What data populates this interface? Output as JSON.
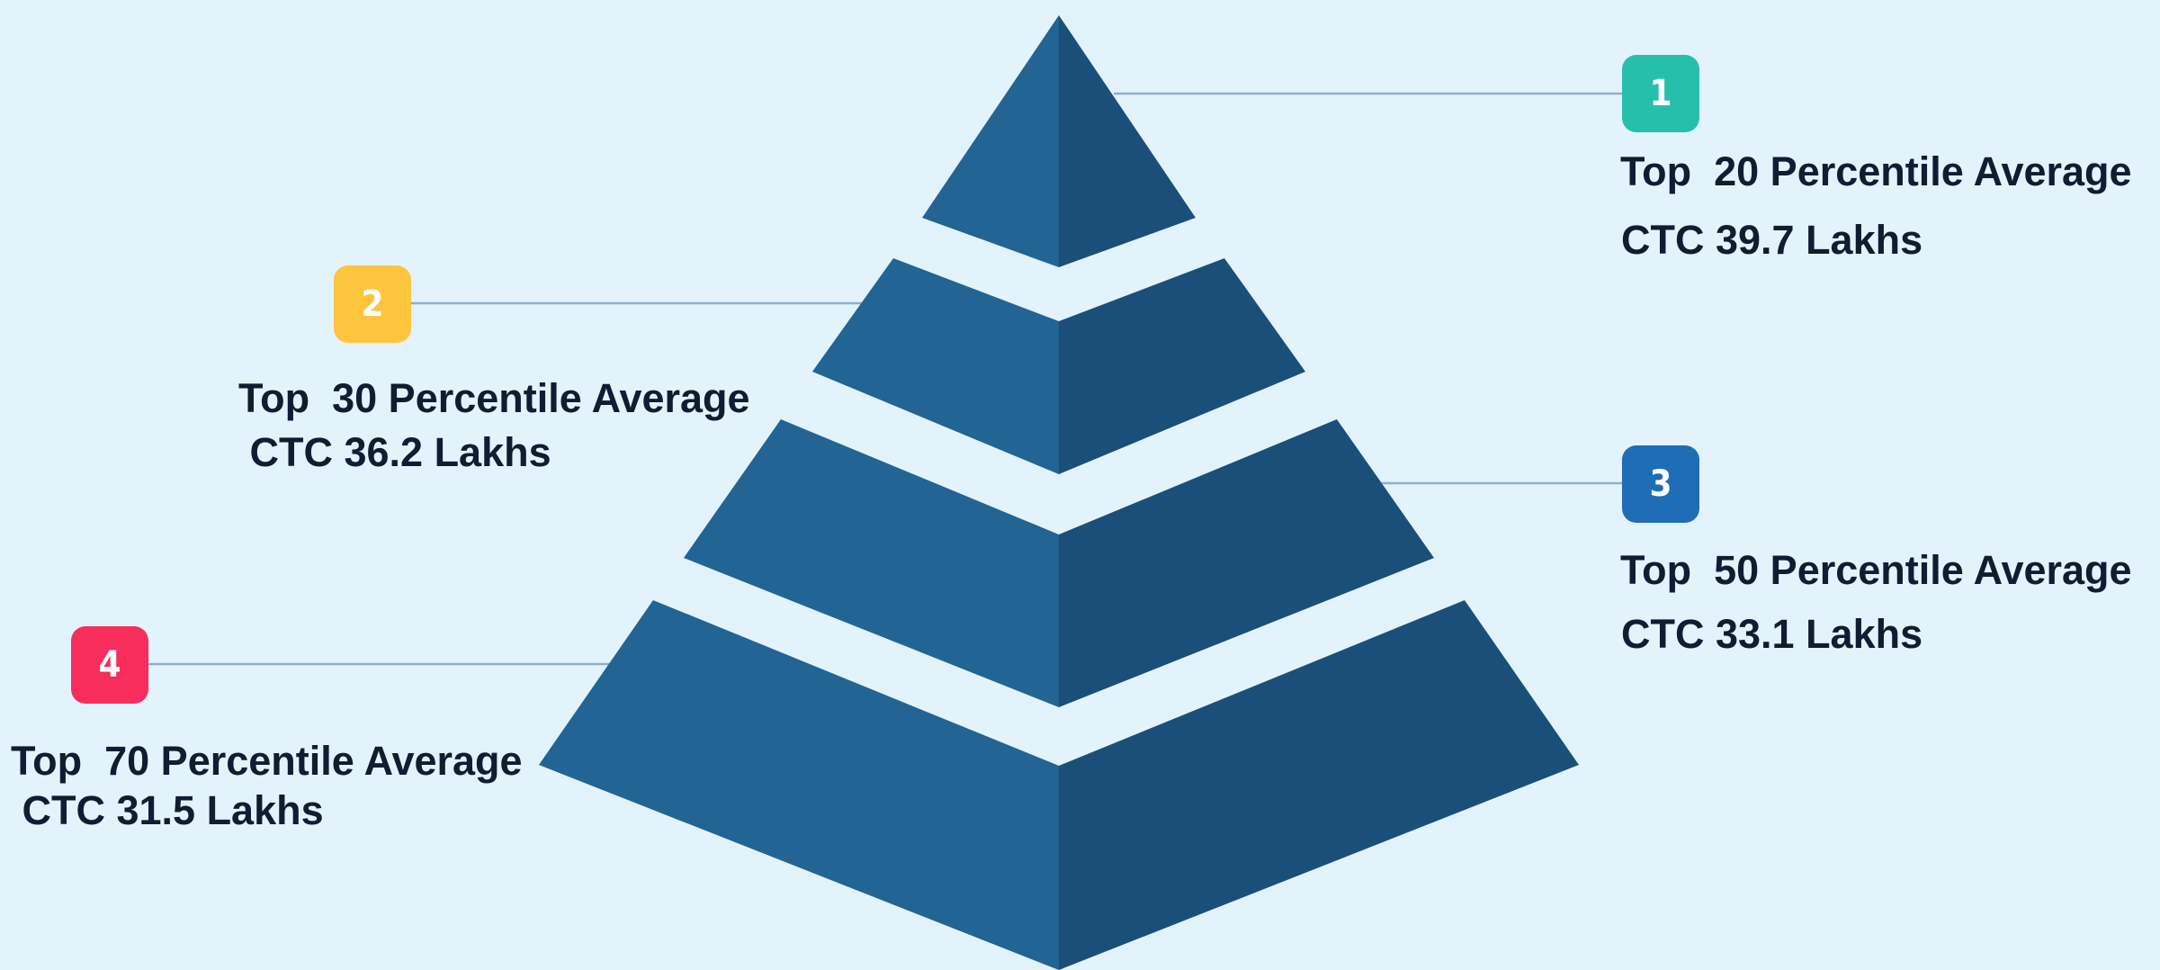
{
  "colors": {
    "background": "#e2f3fb",
    "pyramid_light": "#226493",
    "pyramid_dark": "#1a4f79",
    "connector": "#8fb0c8",
    "label_text": "#111c33"
  },
  "tiers": [
    {
      "badge": "1",
      "badge_color": "#26bfac",
      "line1": "Top  20 Percentile Average",
      "line2": "CTC 39.7 Lakhs"
    },
    {
      "badge": "2",
      "badge_color": "#fdc53d",
      "line1": "Top  30 Percentile Average",
      "line2": " CTC 36.2 Lakhs"
    },
    {
      "badge": "3",
      "badge_color": "#1f6db7",
      "line1": "Top  50 Percentile Average",
      "line2": "CTC 33.1 Lakhs"
    },
    {
      "badge": "4",
      "badge_color": "#f72d5c",
      "line1": "Top  70 Percentile Average",
      "line2": " CTC 31.5 Lakhs"
    }
  ]
}
